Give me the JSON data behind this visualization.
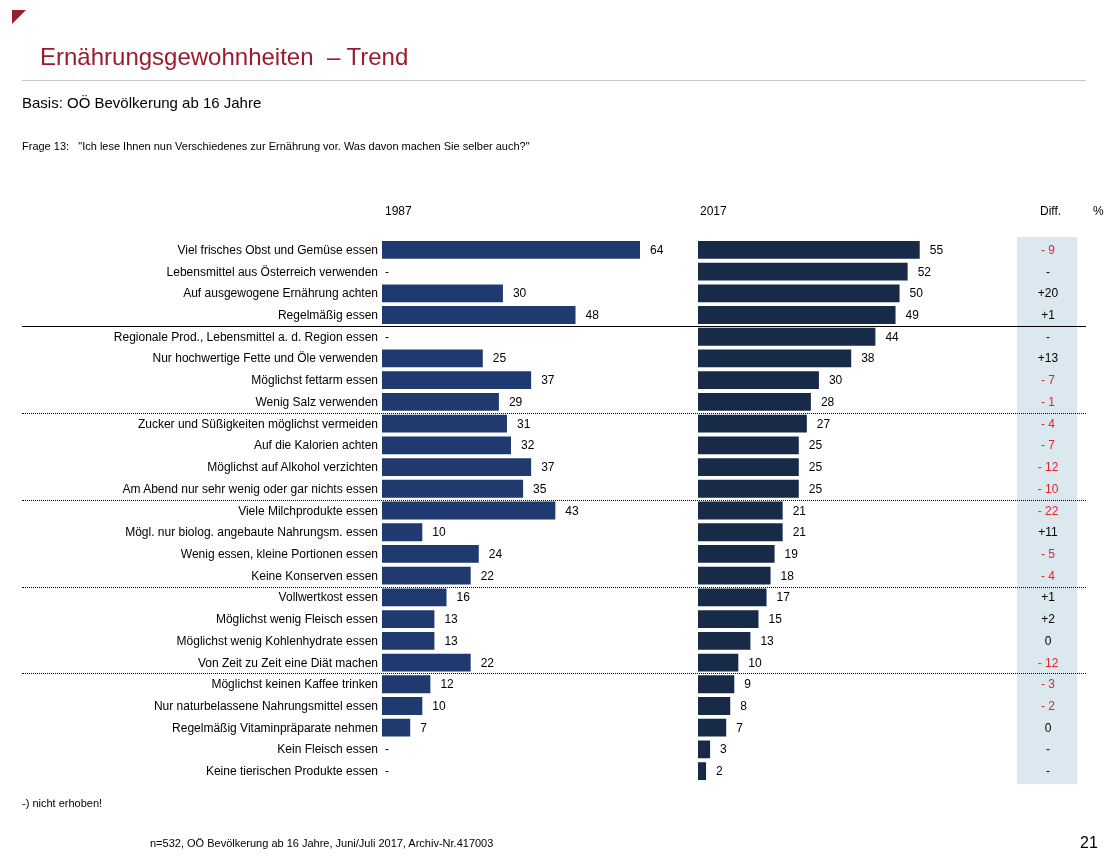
{
  "chart_data": [
    {
      "type": "bar",
      "orientation": "horizontal",
      "title": "Ernährungsgewohnheiten  – Trend",
      "subtitle": "Basis: OÖ Bevölkerung ab 16 Jahre",
      "annotations": [
        "Frage 13:   \"Ich lese Ihnen nun Verschiedenes zur Ernährung vor. Was davon machen Sie selber auch?\"",
        "-) nicht erhoben!",
        "n=532, OÖ Bevölkerung ab 16 Jahre, Juni/Juli 2017, Archiv-Nr.417003",
        "21"
      ],
      "categories": [
        "Viel frisches Obst und Gemüse essen",
        "Lebensmittel aus Österreich verwenden",
        "Auf ausgewogene Ernährung achten",
        "Regelmäßig essen",
        "Regionale Prod., Lebensmittel a. d. Region essen",
        "Nur hochwertige Fette und Öle verwenden",
        "Möglichst fettarm essen",
        "Wenig Salz verwenden",
        "Zucker und Süßigkeiten möglichst vermeiden",
        "Auf die Kalorien achten",
        "Möglichst auf Alkohol verzichten",
        "Am Abend nur sehr wenig oder gar nichts essen",
        "Viele Milchprodukte essen",
        "Mögl. nur biolog. angebaute Nahrungsm. essen",
        "Wenig essen, kleine Portionen essen",
        "Keine Konserven essen",
        "Vollwertkost essen",
        "Möglichst wenig Fleisch essen",
        "Möglichst wenig Kohlenhydrate essen",
        "Von Zeit zu Zeit eine Diät machen",
        "Möglichst keinen Kaffee trinken",
        "Nur naturbelassene Nahrungsmittel essen",
        "Regelmäßig Vitaminpräparate nehmen",
        "Kein Fleisch essen",
        "Keine tierischen Produkte essen"
      ],
      "series": [
        {
          "name": "1987",
          "color": "#1f3a6e",
          "values": [
            64,
            null,
            30,
            48,
            null,
            25,
            37,
            29,
            31,
            32,
            37,
            35,
            43,
            10,
            24,
            22,
            16,
            13,
            13,
            22,
            12,
            10,
            7,
            null,
            null
          ],
          "value_labels": [
            "64",
            "-",
            "30",
            "48",
            "-",
            "25",
            "37",
            "29",
            "31",
            "32",
            "37",
            "35",
            "43",
            "10",
            "24",
            "22",
            "16",
            "13",
            "13",
            "22",
            "12",
            "10",
            "7",
            "-",
            "-"
          ]
        }
      ]
    },
    {
      "type": "bar",
      "orientation": "horizontal",
      "data_labels": true,
      "categories": [
        null,
        null,
        null,
        null,
        null,
        null,
        null,
        null,
        null,
        null,
        null,
        null,
        null,
        null,
        null,
        null,
        null,
        null,
        null,
        null,
        null,
        null,
        null,
        null,
        null
      ],
      "series": [
        {
          "name": "2017",
          "color": "#172a48",
          "values": [
            55,
            52,
            50,
            49,
            44,
            38,
            30,
            28,
            27,
            25,
            25,
            25,
            21,
            21,
            19,
            18,
            17,
            15,
            13,
            10,
            9,
            8,
            7,
            3,
            2
          ]
        }
      ]
    },
    {
      "type": "other",
      "title": "Diff.",
      "annotations": [
        "%"
      ],
      "value_labels": [
        "- 9",
        "-",
        "+20",
        "+1",
        "-",
        "+13",
        "- 7",
        "- 1",
        "- 4",
        "- 7",
        "- 12",
        "- 10",
        "- 22",
        "+11",
        "- 5",
        "- 4",
        "+1",
        "+2",
        "0",
        "- 12",
        "- 3",
        "- 2",
        "0",
        "-",
        "-"
      ],
      "colors": [
        "#e3262b",
        "#000000",
        "#000000",
        "#000000",
        "#000000",
        "#000000",
        "#e3262b",
        "#e3262b",
        "#e3262b",
        "#e3262b",
        "#e3262b",
        "#e3262b",
        "#e3262b",
        "#000000",
        "#e3262b",
        "#e3262b",
        "#000000",
        "#000000",
        "#000000",
        "#e3262b",
        "#e3262b",
        "#e3262b",
        "#000000",
        "#000000",
        "#000000"
      ]
    }
  ]
}
